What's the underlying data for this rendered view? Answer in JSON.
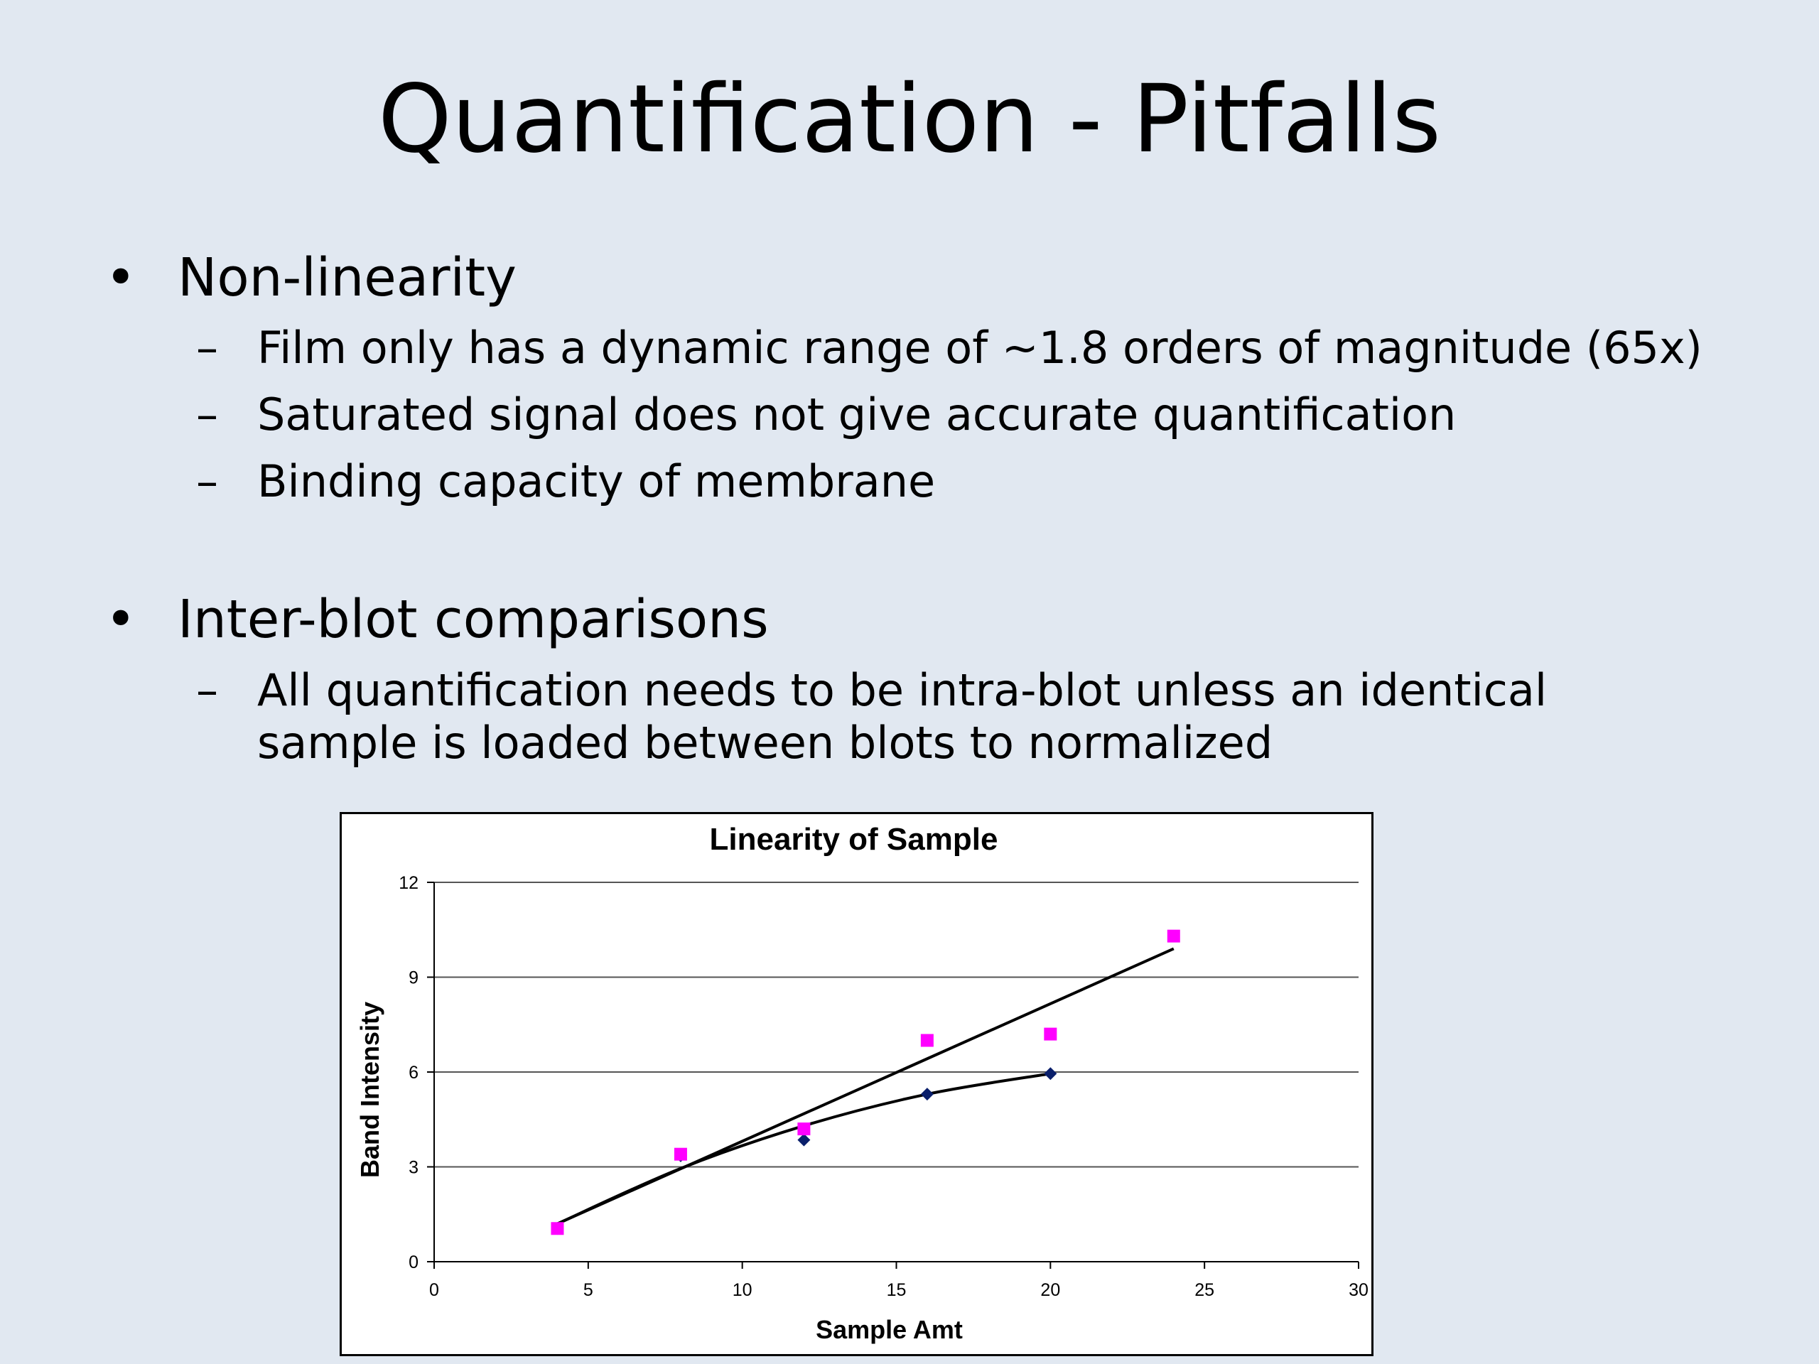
{
  "slide": {
    "title": "Quantification - Pitfalls",
    "bullets": [
      {
        "text": "Non-linearity",
        "sub": [
          "Film only has a dynamic range of ~1.8 orders of magnitude (65x)",
          "Saturated signal does not give accurate quantification",
          "Binding capacity of membrane"
        ]
      },
      {
        "text": "Inter-blot comparisons",
        "sub": [
          "All quantification needs to be intra-blot unless an identical",
          "sample is loaded between blots to normalized"
        ]
      }
    ],
    "bullet_glyph": "•",
    "dash_glyph": "–"
  },
  "chart_data": {
    "type": "scatter",
    "title": "Linearity of Sample",
    "xlabel": "Sample Amt",
    "ylabel": "Band Intensity",
    "xlim": [
      0,
      30
    ],
    "ylim": [
      0,
      12
    ],
    "xticks": [
      0,
      5,
      10,
      15,
      20,
      25,
      30
    ],
    "yticks": [
      0,
      3,
      6,
      9,
      12
    ],
    "grid": "horizontal",
    "legend": "none",
    "series": [
      {
        "marker": "diamond",
        "color": "#0a1f6b",
        "x": [
          4,
          8,
          12,
          16,
          20
        ],
        "y": [
          1.05,
          3.35,
          3.85,
          5.3,
          5.95
        ],
        "trendline": {
          "kind": "curve",
          "x": [
            4,
            8,
            12,
            16,
            20
          ],
          "y": [
            1.2,
            2.95,
            4.3,
            5.3,
            5.95
          ]
        }
      },
      {
        "marker": "square",
        "color": "#ff00ff",
        "x": [
          4,
          8,
          12,
          16,
          20,
          24
        ],
        "y": [
          1.05,
          3.4,
          4.2,
          7.0,
          7.2,
          10.3
        ],
        "trendline": {
          "kind": "linear",
          "x": [
            4,
            24
          ],
          "y": [
            1.2,
            9.9
          ]
        }
      }
    ]
  }
}
